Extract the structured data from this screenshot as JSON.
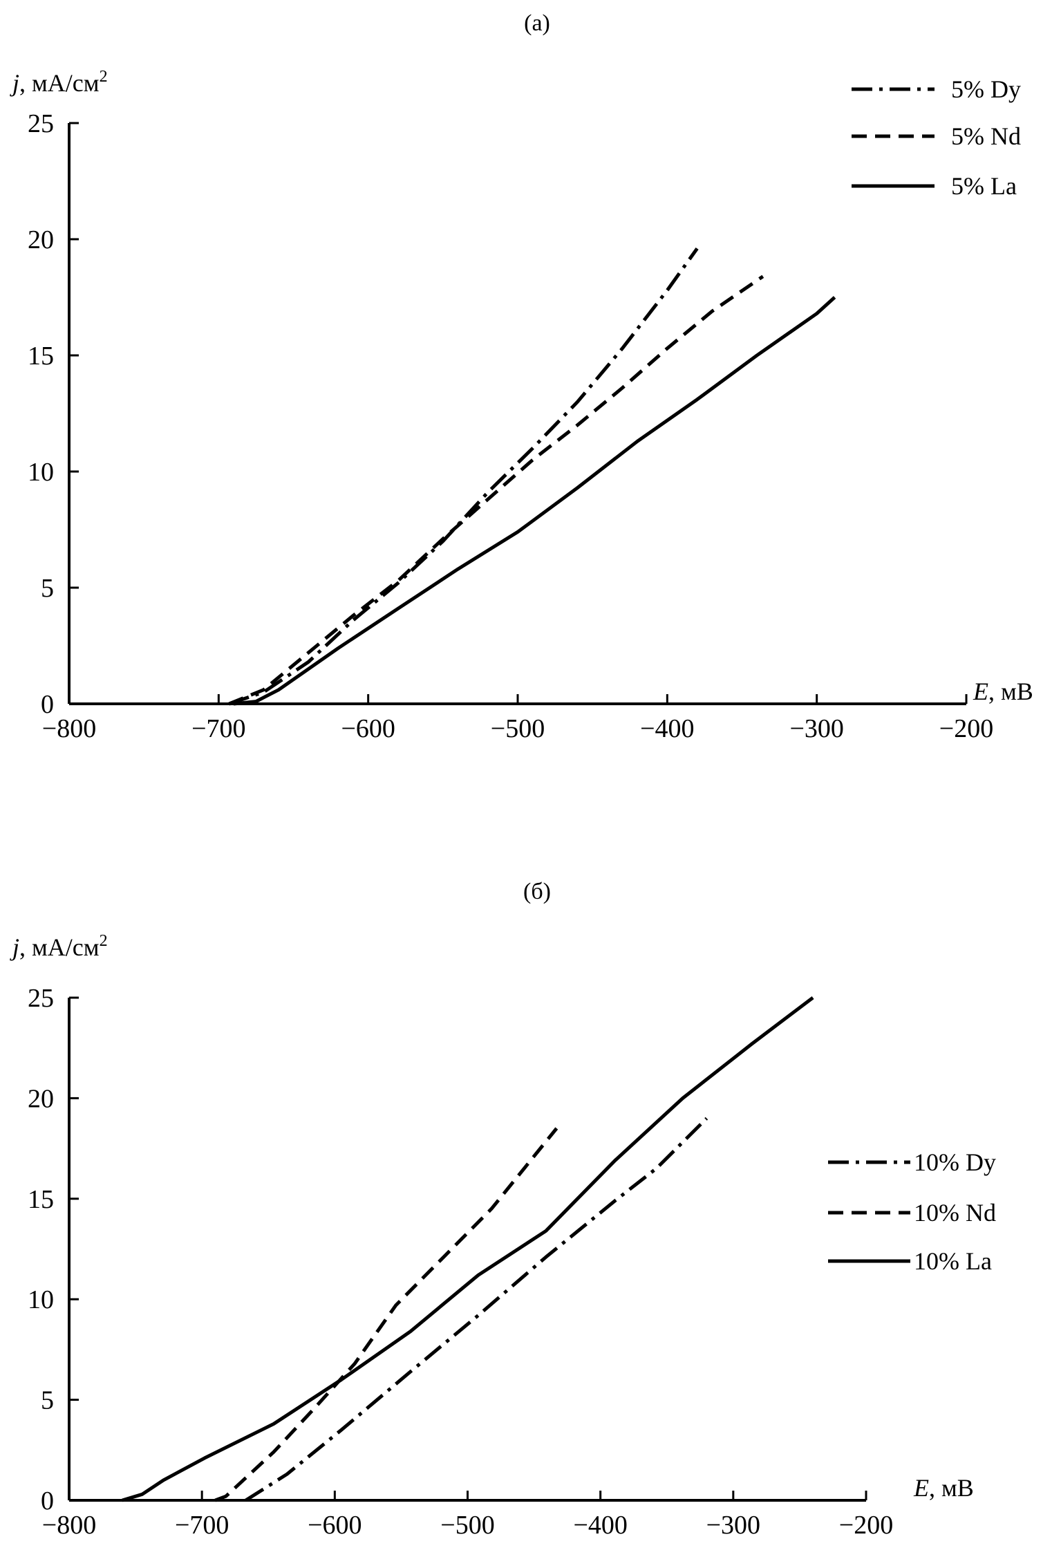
{
  "chart_data": [
    {
      "type": "line",
      "title": "(a)",
      "xlabel_italic": "E",
      "xlabel_unit": ", мВ",
      "ylabel_italic": "j",
      "ylabel_unit": ", мА/см",
      "ylabel_sup": "2",
      "xlim": [
        -800,
        -200
      ],
      "ylim": [
        0,
        25
      ],
      "xticks": [
        "−800",
        "−700",
        "−600",
        "−500",
        "−400",
        "−300",
        "−200"
      ],
      "xtick_values": [
        -800,
        -700,
        -600,
        -500,
        -400,
        -300,
        -200
      ],
      "yticks": [
        "0",
        "5",
        "10",
        "15",
        "20",
        "25"
      ],
      "ytick_values": [
        0,
        5,
        10,
        15,
        20,
        25
      ],
      "grid": false,
      "legend_position": "top-right",
      "series": [
        {
          "name": "5% Dy",
          "style": "dash-dot",
          "points": [
            [
              -693,
              0
            ],
            [
              -670,
              0.5
            ],
            [
              -640,
              1.8
            ],
            [
              -610,
              3.6
            ],
            [
              -580,
              5.2
            ],
            [
              -550,
              7.0
            ],
            [
              -520,
              9.1
            ],
            [
              -490,
              11.0
            ],
            [
              -460,
              13.0
            ],
            [
              -430,
              15.3
            ],
            [
              -400,
              17.8
            ],
            [
              -380,
              19.6
            ]
          ]
        },
        {
          "name": "5% Nd",
          "style": "dashed",
          "points": [
            [
              -693,
              0
            ],
            [
              -670,
              0.6
            ],
            [
              -640,
              2.2
            ],
            [
              -610,
              3.8
            ],
            [
              -580,
              5.3
            ],
            [
              -550,
              7.1
            ],
            [
              -520,
              8.8
            ],
            [
              -490,
              10.5
            ],
            [
              -460,
              12.0
            ],
            [
              -430,
              13.6
            ],
            [
              -400,
              15.3
            ],
            [
              -370,
              16.9
            ],
            [
              -336,
              18.4
            ]
          ]
        },
        {
          "name": "5% La",
          "style": "solid",
          "points": [
            [
              -690,
              0
            ],
            [
              -675,
              0.1
            ],
            [
              -660,
              0.6
            ],
            [
              -620,
              2.4
            ],
            [
              -580,
              4.1
            ],
            [
              -540,
              5.8
            ],
            [
              -500,
              7.4
            ],
            [
              -460,
              9.3
            ],
            [
              -420,
              11.3
            ],
            [
              -380,
              13.1
            ],
            [
              -340,
              15.0
            ],
            [
              -300,
              16.8
            ],
            [
              -288,
              17.5
            ]
          ]
        }
      ]
    },
    {
      "type": "line",
      "title": "(б)",
      "xlabel_italic": "E",
      "xlabel_unit": ", мВ",
      "ylabel_italic": "j",
      "ylabel_unit": ", мА/см",
      "ylabel_sup": "2",
      "xlim": [
        -800,
        -200
      ],
      "ylim": [
        0,
        25
      ],
      "xticks": [
        "−800",
        "−700",
        "−600",
        "−500",
        "−400",
        "−300",
        "−200"
      ],
      "xtick_values": [
        -800,
        -700,
        -600,
        -500,
        -400,
        -300,
        -200
      ],
      "yticks": [
        "0",
        "5",
        "10",
        "15",
        "20",
        "25"
      ],
      "ytick_values": [
        0,
        5,
        10,
        15,
        20,
        25
      ],
      "grid": false,
      "legend_position": "right",
      "series": [
        {
          "name": "10% Dy",
          "style": "dash-dot",
          "points": [
            [
              -667,
              0
            ],
            [
              -636,
              1.3
            ],
            [
              -595,
              3.5
            ],
            [
              -543,
              6.4
            ],
            [
              -492,
              9.2
            ],
            [
              -441,
              12.1
            ],
            [
              -389,
              14.9
            ],
            [
              -358,
              16.5
            ],
            [
              -320,
              19.0
            ]
          ]
        },
        {
          "name": "10% Nd",
          "style": "dashed",
          "points": [
            [
              -690,
              0
            ],
            [
              -682,
              0.2
            ],
            [
              -646,
              2.4
            ],
            [
              -615,
              4.6
            ],
            [
              -585,
              6.8
            ],
            [
              -554,
              9.7
            ],
            [
              -518,
              12.1
            ],
            [
              -482,
              14.5
            ],
            [
              -433,
              18.5
            ]
          ]
        },
        {
          "name": "10% La",
          "style": "solid",
          "points": [
            [
              -760,
              0
            ],
            [
              -745,
              0.3
            ],
            [
              -729,
              1.0
            ],
            [
              -698,
              2.1
            ],
            [
              -646,
              3.8
            ],
            [
              -595,
              6.0
            ],
            [
              -543,
              8.4
            ],
            [
              -492,
              11.2
            ],
            [
              -441,
              13.4
            ],
            [
              -389,
              16.9
            ],
            [
              -338,
              20.0
            ],
            [
              -286,
              22.7
            ],
            [
              -240,
              25.0
            ]
          ]
        }
      ]
    }
  ]
}
